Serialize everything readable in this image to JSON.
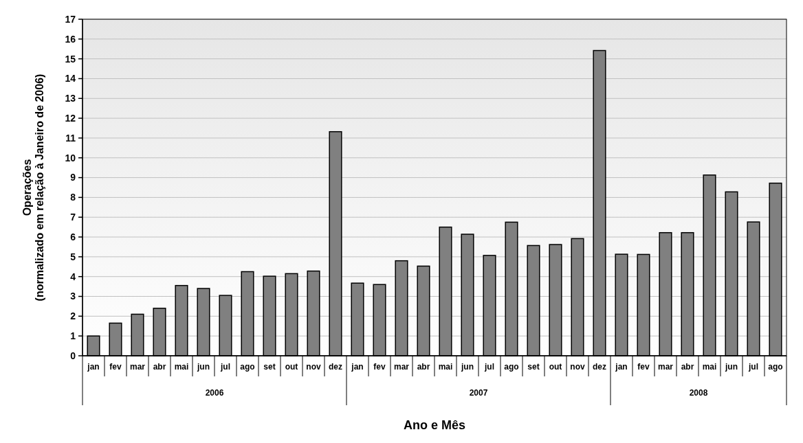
{
  "chart_data": {
    "type": "bar",
    "xlabel": "Ano e Mês",
    "ylabel": "Operações\n(normalizado em relação à Janeiro de 2006)",
    "categories": [
      "jan",
      "fev",
      "mar",
      "abr",
      "mai",
      "jun",
      "jul",
      "ago",
      "set",
      "out",
      "nov",
      "dez",
      "jan",
      "fev",
      "mar",
      "abr",
      "mai",
      "jun",
      "jul",
      "ago",
      "set",
      "out",
      "nov",
      "dez",
      "jan",
      "fev",
      "mar",
      "abr",
      "mai",
      "jun",
      "jul",
      "ago"
    ],
    "values": [
      1.0,
      1.65,
      2.1,
      2.4,
      3.55,
      3.4,
      3.05,
      4.25,
      4.02,
      4.15,
      4.28,
      11.32,
      3.67,
      3.6,
      4.8,
      4.53,
      6.5,
      6.14,
      5.07,
      6.75,
      5.57,
      5.62,
      5.92,
      15.42,
      5.13,
      5.12,
      6.22,
      6.22,
      9.13,
      8.28,
      6.76,
      8.72
    ],
    "color": "#808080",
    "ylim": [
      0,
      17
    ],
    "yticks": [
      0,
      1,
      2,
      3,
      4,
      5,
      6,
      7,
      8,
      9,
      10,
      11,
      12,
      13,
      14,
      15,
      16,
      17
    ],
    "grid": "y",
    "annotations": [
      "2006",
      "2007",
      "2008"
    ]
  }
}
